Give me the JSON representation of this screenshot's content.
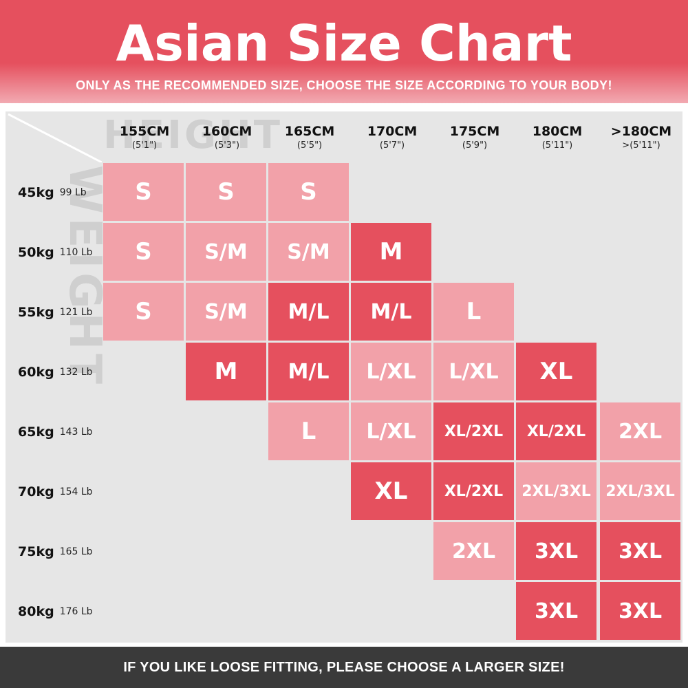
{
  "header": {
    "title": "Asian Size Chart",
    "subtitle": "ONLY AS THE RECOMMENDED SIZE, CHOOSE THE SIZE ACCORDING TO YOUR BODY!"
  },
  "watermark": {
    "height": "HEIGHT",
    "weight": "WEIGHT"
  },
  "columns": [
    {
      "cm": "155CM",
      "ft": "(5'1\")"
    },
    {
      "cm": "160CM",
      "ft": "(5'3\")"
    },
    {
      "cm": "165CM",
      "ft": "(5'5\")"
    },
    {
      "cm": "170CM",
      "ft": "(5'7\")"
    },
    {
      "cm": "175CM",
      "ft": "(5'9\")"
    },
    {
      "cm": "180CM",
      "ft": "(5'11\")"
    },
    {
      "cm": ">180CM",
      "ft": ">(5'11\")"
    }
  ],
  "rows": [
    {
      "kg": "45kg",
      "lb": "99 Lb"
    },
    {
      "kg": "50kg",
      "lb": "110 Lb"
    },
    {
      "kg": "55kg",
      "lb": "121 Lb"
    },
    {
      "kg": "60kg",
      "lb": "132 Lb"
    },
    {
      "kg": "65kg",
      "lb": "143 Lb"
    },
    {
      "kg": "70kg",
      "lb": "154 Lb"
    },
    {
      "kg": "75kg",
      "lb": "165 Lb"
    },
    {
      "kg": "80kg",
      "lb": "176 Lb"
    }
  ],
  "cells": [
    [
      {
        "v": "S",
        "t": "light"
      },
      {
        "v": "S",
        "t": "light"
      },
      {
        "v": "S",
        "t": "light"
      },
      {
        "v": "",
        "t": "empty"
      },
      {
        "v": "",
        "t": "empty"
      },
      {
        "v": "",
        "t": "empty"
      },
      {
        "v": "",
        "t": "empty"
      }
    ],
    [
      {
        "v": "S",
        "t": "light"
      },
      {
        "v": "S/M",
        "t": "light"
      },
      {
        "v": "S/M",
        "t": "light"
      },
      {
        "v": "M",
        "t": "dark"
      },
      {
        "v": "",
        "t": "empty"
      },
      {
        "v": "",
        "t": "empty"
      },
      {
        "v": "",
        "t": "empty"
      }
    ],
    [
      {
        "v": "S",
        "t": "light"
      },
      {
        "v": "S/M",
        "t": "light"
      },
      {
        "v": "M/L",
        "t": "dark"
      },
      {
        "v": "M/L",
        "t": "dark"
      },
      {
        "v": "L",
        "t": "light"
      },
      {
        "v": "",
        "t": "empty"
      },
      {
        "v": "",
        "t": "empty"
      }
    ],
    [
      {
        "v": "",
        "t": "empty"
      },
      {
        "v": "M",
        "t": "dark"
      },
      {
        "v": "M/L",
        "t": "dark"
      },
      {
        "v": "L/XL",
        "t": "light"
      },
      {
        "v": "L/XL",
        "t": "light"
      },
      {
        "v": "XL",
        "t": "dark"
      },
      {
        "v": "",
        "t": "empty"
      }
    ],
    [
      {
        "v": "",
        "t": "empty"
      },
      {
        "v": "",
        "t": "empty"
      },
      {
        "v": "L",
        "t": "light"
      },
      {
        "v": "L/XL",
        "t": "light"
      },
      {
        "v": "XL/2XL",
        "t": "dark"
      },
      {
        "v": "XL/2XL",
        "t": "dark"
      },
      {
        "v": "2XL",
        "t": "light"
      }
    ],
    [
      {
        "v": "",
        "t": "empty"
      },
      {
        "v": "",
        "t": "empty"
      },
      {
        "v": "",
        "t": "empty"
      },
      {
        "v": "XL",
        "t": "dark"
      },
      {
        "v": "XL/2XL",
        "t": "dark"
      },
      {
        "v": "2XL/3XL",
        "t": "light"
      },
      {
        "v": "2XL/3XL",
        "t": "light"
      }
    ],
    [
      {
        "v": "",
        "t": "empty"
      },
      {
        "v": "",
        "t": "empty"
      },
      {
        "v": "",
        "t": "empty"
      },
      {
        "v": "",
        "t": "empty"
      },
      {
        "v": "2XL",
        "t": "light"
      },
      {
        "v": "3XL",
        "t": "dark"
      },
      {
        "v": "3XL",
        "t": "dark"
      }
    ],
    [
      {
        "v": "",
        "t": "empty"
      },
      {
        "v": "",
        "t": "empty"
      },
      {
        "v": "",
        "t": "empty"
      },
      {
        "v": "",
        "t": "empty"
      },
      {
        "v": "",
        "t": "empty"
      },
      {
        "v": "3XL",
        "t": "dark"
      },
      {
        "v": "3XL",
        "t": "dark"
      }
    ]
  ],
  "footer": {
    "text": "IF YOU LIKE LOOSE FITTING, PLEASE CHOOSE A LARGER SIZE!"
  },
  "colors": {
    "dark": "#e5505e",
    "light": "#f2a1a9",
    "empty": "#e6e6e6"
  }
}
